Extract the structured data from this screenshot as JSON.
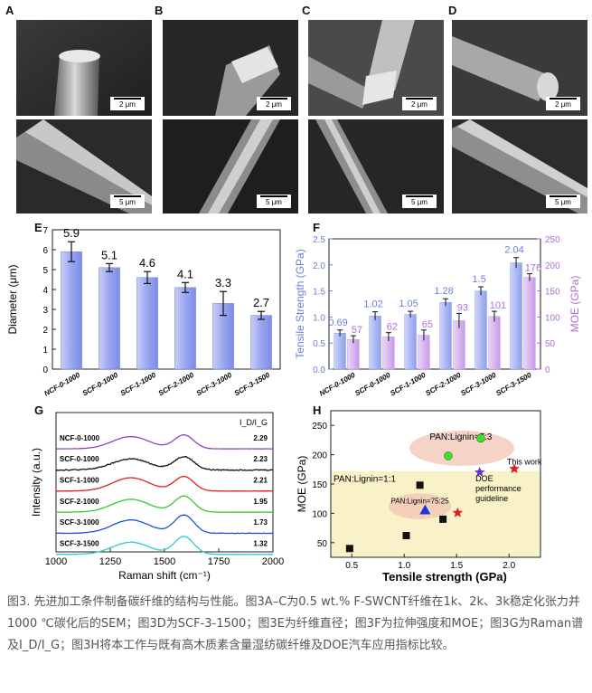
{
  "panels": {
    "A": "A",
    "B": "B",
    "C": "C",
    "D": "D",
    "E": "E",
    "F": "F",
    "G": "G",
    "H": "H"
  },
  "sem": {
    "scale_top": "2 μm",
    "scale_bottom": "5 μm"
  },
  "chart_data": [
    {
      "panel": "E",
      "type": "bar",
      "categories": [
        "NCF-0-1000",
        "SCF-0-1000",
        "SCF-1-1000",
        "SCF-2-1000",
        "SCF-3-1000",
        "SCF-3-1500"
      ],
      "values": [
        5.9,
        5.1,
        4.6,
        4.1,
        3.3,
        2.7
      ],
      "errors": [
        0.5,
        0.2,
        0.3,
        0.25,
        0.6,
        0.2
      ],
      "value_labels": [
        "5.9",
        "5.1",
        "4.6",
        "4.1",
        "3.3",
        "2.7"
      ],
      "ylabel": "Diameter (μm)",
      "ylim": [
        0,
        7
      ],
      "yticks": [
        "0",
        "1",
        "2",
        "3",
        "4",
        "5",
        "6",
        "7"
      ],
      "color": "#9aa6f0"
    },
    {
      "panel": "F",
      "type": "bar",
      "categories": [
        "NCF-0-1000",
        "SCF-0-1000",
        "SCF-1-1000",
        "SCF-2-1000",
        "SCF-3-1000",
        "SCF-3-1500"
      ],
      "series": [
        {
          "axis": "left",
          "values": [
            0.69,
            1.02,
            1.05,
            1.28,
            1.5,
            2.04
          ],
          "errors": [
            0.06,
            0.08,
            0.06,
            0.07,
            0.08,
            0.1
          ],
          "value_labels": [
            "0.69",
            "1.02",
            "1.05",
            "1.28",
            "1.5",
            "2.04"
          ],
          "color": "#8fa0ec"
        },
        {
          "axis": "right",
          "values": [
            57,
            62,
            65,
            93,
            101,
            176
          ],
          "errors": [
            7,
            8,
            10,
            14,
            10,
            7
          ],
          "value_labels": [
            "57",
            "62",
            "65",
            "93",
            "101",
            "176"
          ],
          "color": "#c79ae8"
        }
      ],
      "ylabel_left": "Tensile Strength (GPa)",
      "ylabel_right": "MOE (GPa)",
      "ylim_left": [
        0,
        2.5
      ],
      "ylim_right": [
        0,
        250
      ],
      "yticks_left": [
        "0.0",
        "0.5",
        "1.0",
        "1.5",
        "2.0",
        "2.5"
      ],
      "yticks_right": [
        "0",
        "50",
        "100",
        "150",
        "200",
        "250"
      ],
      "left_color": "#6a7fd8",
      "right_color": "#b06fd8"
    },
    {
      "panel": "G",
      "type": "line",
      "xlabel": "Raman shift (cm⁻¹)",
      "ylabel": "Intensity (a.u.)",
      "xlim": [
        1000,
        2000
      ],
      "xticks": [
        "1000",
        "1250",
        "1500",
        "1750",
        "2000"
      ],
      "ratio_header": "I_D/I_G",
      "series": [
        {
          "name": "NCF-0-1000",
          "ratio": "2.29",
          "color": "#8e44c8",
          "d_height": 0.55,
          "g_height": 0.62,
          "noise": 0.01
        },
        {
          "name": "SCF-0-1000",
          "ratio": "2.23",
          "color": "#111111",
          "d_height": 0.5,
          "g_height": 0.6,
          "noise": 0.05
        },
        {
          "name": "SCF-1-1000",
          "ratio": "2.21",
          "color": "#e02020",
          "d_height": 0.6,
          "g_height": 0.65,
          "noise": 0.01
        },
        {
          "name": "SCF-2-1000",
          "ratio": "1.95",
          "color": "#37c837",
          "d_height": 0.58,
          "g_height": 0.72,
          "noise": 0.01
        },
        {
          "name": "SCF-3-1000",
          "ratio": "1.73",
          "color": "#2050d8",
          "d_height": 0.6,
          "g_height": 0.82,
          "noise": 0.02
        },
        {
          "name": "SCF-3-1500",
          "ratio": "1.32",
          "color": "#30c8d8",
          "d_height": 0.55,
          "g_height": 0.8,
          "noise": 0.01
        }
      ]
    },
    {
      "panel": "H",
      "type": "scatter",
      "xlabel": "Tensile strength (GPa)",
      "ylabel": "MOE (GPa)",
      "xlim": [
        0.3,
        2.3
      ],
      "ylim": [
        25,
        275
      ],
      "xticks": [
        {
          "v": 0.5,
          "t": "0.5"
        },
        {
          "v": 1.0,
          "t": "1.0"
        },
        {
          "v": 1.5,
          "t": "1.5"
        },
        {
          "v": 2.0,
          "t": "2.0"
        }
      ],
      "yticks": [
        {
          "v": 50,
          "t": "50"
        },
        {
          "v": 100,
          "t": "100"
        },
        {
          "v": 150,
          "t": "150"
        },
        {
          "v": 200,
          "t": "200"
        },
        {
          "v": 250,
          "t": "250"
        }
      ],
      "guideline_region": {
        "x": [
          0.3,
          2.3
        ],
        "y": [
          25,
          172
        ],
        "label": "PAN:Lignin=1:1"
      },
      "ellipses": [
        {
          "cx": 1.55,
          "cy": 211,
          "rx": 0.5,
          "ry": 30,
          "label": "PAN:Lignin=7:3",
          "color": "#f2c8b8"
        },
        {
          "cx": 1.15,
          "cy": 112,
          "rx": 0.3,
          "ry": 22,
          "label": "PAN:Lignin=75:25",
          "color": "#f2c8b8"
        }
      ],
      "points": [
        {
          "x": 0.48,
          "y": 40,
          "marker": "square",
          "color": "#111111"
        },
        {
          "x": 1.02,
          "y": 62,
          "marker": "square",
          "color": "#111111"
        },
        {
          "x": 1.15,
          "y": 148,
          "marker": "square",
          "color": "#111111"
        },
        {
          "x": 1.37,
          "y": 90,
          "marker": "square",
          "color": "#111111"
        },
        {
          "x": 1.2,
          "y": 106,
          "marker": "triangle",
          "color": "#2233dd"
        },
        {
          "x": 1.51,
          "y": 101,
          "marker": "star",
          "color": "#e02020"
        },
        {
          "x": 1.42,
          "y": 198,
          "marker": "circle",
          "color": "#44dd33"
        },
        {
          "x": 1.73,
          "y": 228,
          "marker": "circle",
          "color": "#44dd33"
        },
        {
          "x": 1.72,
          "y": 170,
          "marker": "star",
          "color": "#6633cc"
        },
        {
          "x": 2.05,
          "y": 176,
          "marker": "star",
          "color": "#e02020"
        }
      ],
      "annotations": {
        "this_work": "This work",
        "doe": [
          "DOE",
          "performance",
          "guideline"
        ]
      }
    }
  ],
  "caption": "图3. 先进加工条件制备碳纤维的结构与性能。图3A–C为0.5 wt.% F-SWCNT纤维在1k、2k、3k稳定化张力并1000 ℃碳化后的SEM；图3D为SCF-3-1500；图3E为纤维直径；图3F为拉伸强度和MOE；图3G为Raman谱及I_D/I_G；图3H将本工作与既有高木质素含量湿纺碳纤维及DOE汽车应用指标比较。"
}
